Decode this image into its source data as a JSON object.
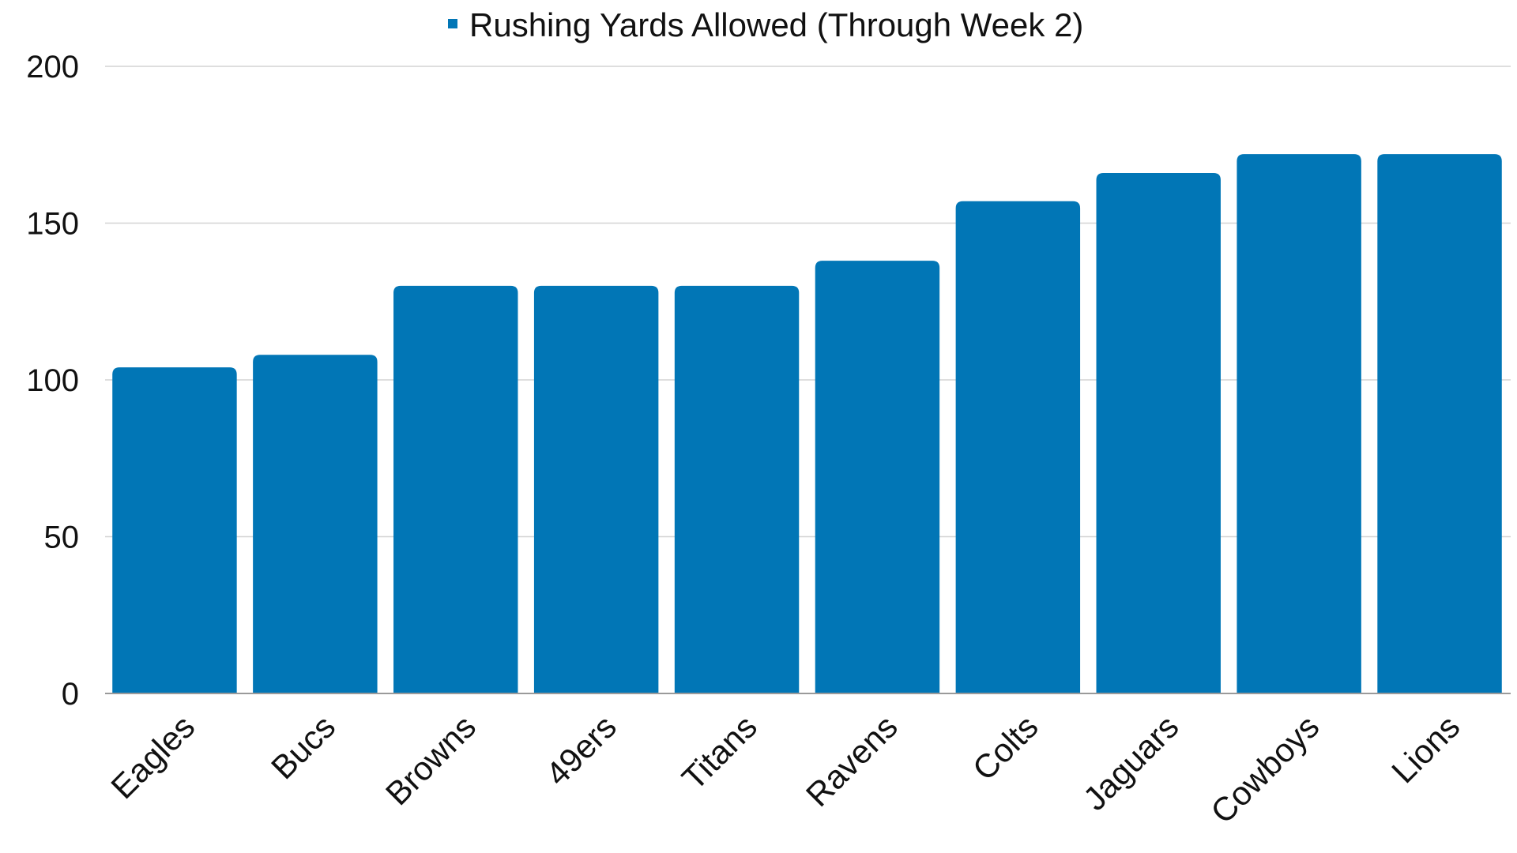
{
  "chart_data": {
    "type": "bar",
    "categories": [
      "Eagles",
      "Bucs",
      "Browns",
      "49ers",
      "Titans",
      "Ravens",
      "Colts",
      "Jaguars",
      "Cowboys",
      "Lions"
    ],
    "series": [
      {
        "name": "Rushing Yards Allowed (Through Week 2)",
        "values": [
          104,
          108,
          130,
          130,
          130,
          138,
          157,
          166,
          172,
          172
        ],
        "color": "#0176B6"
      }
    ],
    "title": "",
    "xlabel": "",
    "ylabel": "",
    "ylim": [
      0,
      200
    ],
    "yticks": [
      0,
      50,
      100,
      150,
      200
    ],
    "grid": true,
    "legend_position": "top-center"
  }
}
